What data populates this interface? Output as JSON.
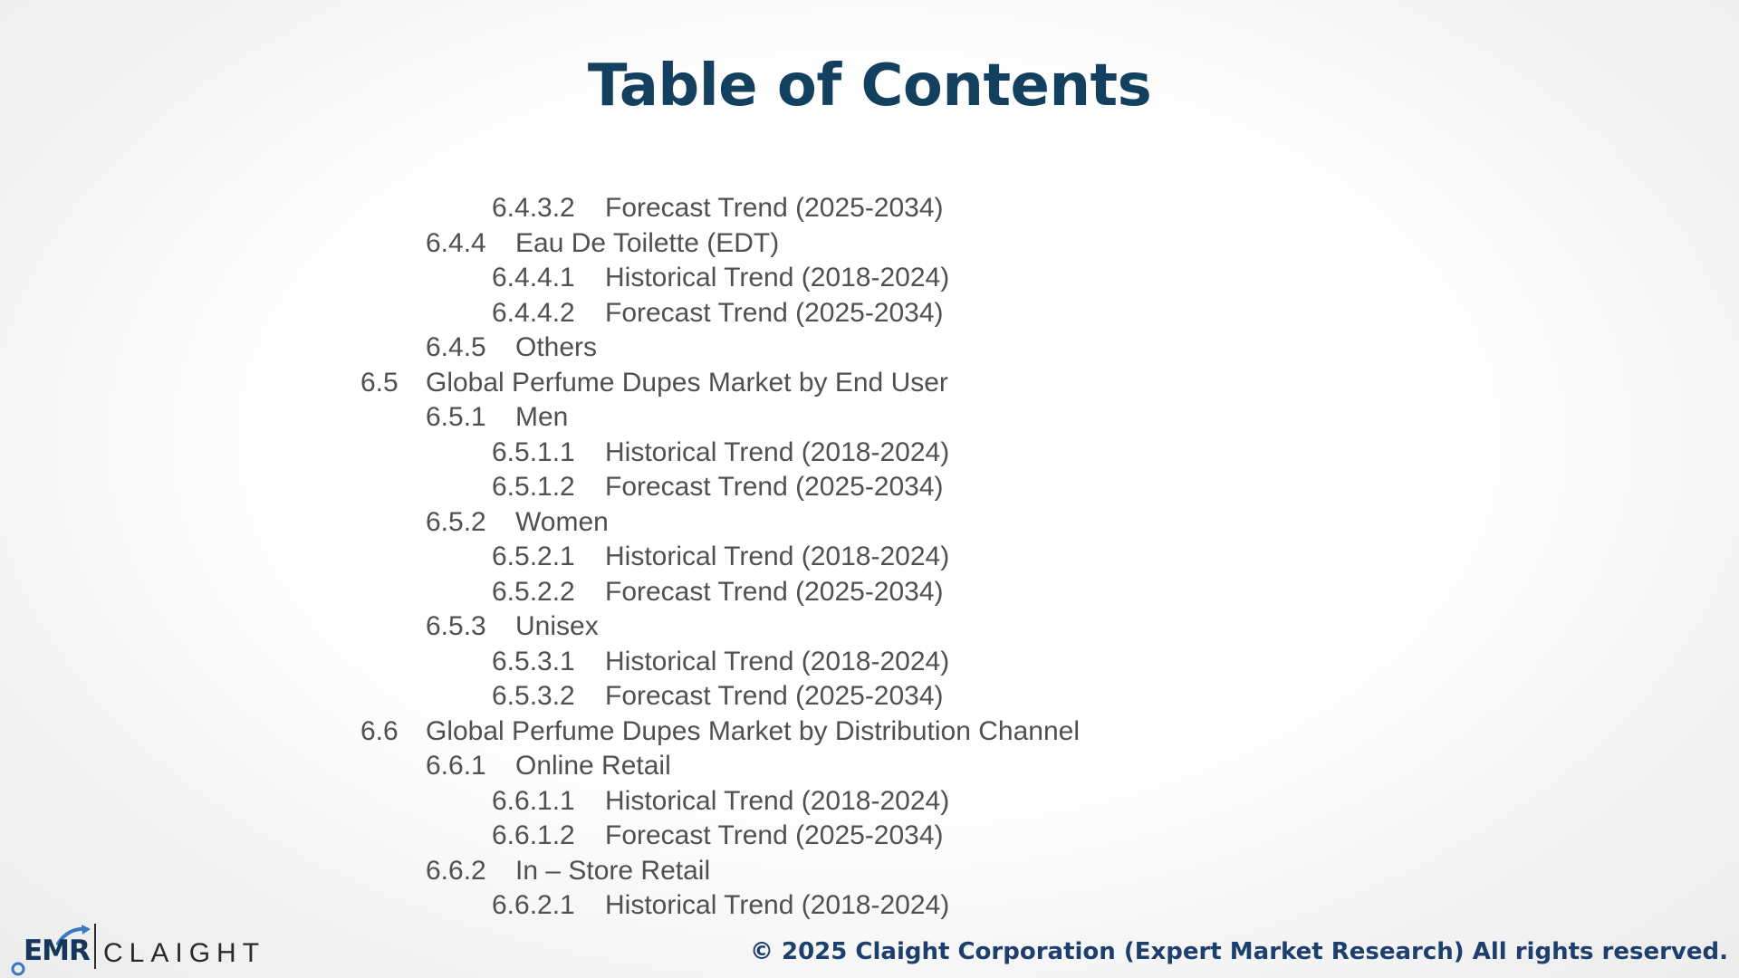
{
  "page": {
    "title": "Table of Contents",
    "toc": [
      {
        "level": 3,
        "number": "6.4.3.2",
        "text": "Forecast Trend (2025-2034)"
      },
      {
        "level": 2,
        "number": "6.4.4",
        "text": "Eau De Toilette (EDT)"
      },
      {
        "level": 3,
        "number": "6.4.4.1",
        "text": "Historical Trend (2018-2024)"
      },
      {
        "level": 3,
        "number": "6.4.4.2",
        "text": "Forecast Trend (2025-2034)"
      },
      {
        "level": 2,
        "number": "6.4.5",
        "text": "Others"
      },
      {
        "level": 1,
        "number": "6.5",
        "text": "Global Perfume Dupes Market by End User"
      },
      {
        "level": 2,
        "number": "6.5.1",
        "text": "Men"
      },
      {
        "level": 3,
        "number": "6.5.1.1",
        "text": "Historical Trend (2018-2024)"
      },
      {
        "level": 3,
        "number": "6.5.1.2",
        "text": "Forecast Trend (2025-2034)"
      },
      {
        "level": 2,
        "number": "6.5.2",
        "text": "Women"
      },
      {
        "level": 3,
        "number": "6.5.2.1",
        "text": "Historical Trend (2018-2024)"
      },
      {
        "level": 3,
        "number": "6.5.2.2",
        "text": "Forecast Trend (2025-2034)"
      },
      {
        "level": 2,
        "number": "6.5.3",
        "text": "Unisex"
      },
      {
        "level": 3,
        "number": "6.5.3.1",
        "text": "Historical Trend (2018-2024)"
      },
      {
        "level": 3,
        "number": "6.5.3.2",
        "text": "Forecast Trend (2025-2034)"
      },
      {
        "level": 1,
        "number": "6.6",
        "text": "Global Perfume Dupes Market by Distribution Channel"
      },
      {
        "level": 2,
        "number": "6.6.1",
        "text": "Online Retail"
      },
      {
        "level": 3,
        "number": "6.6.1.1",
        "text": "Historical Trend (2018-2024)"
      },
      {
        "level": 3,
        "number": "6.6.1.2",
        "text": "Forecast Trend (2025-2034)"
      },
      {
        "level": 2,
        "number": "6.6.2",
        "text": "In – Store Retail"
      },
      {
        "level": 3,
        "number": "6.6.2.1",
        "text": "Historical Trend (2018-2024)"
      }
    ]
  },
  "branding": {
    "logo_left": "EMR",
    "logo_right": "CLAIGHT",
    "copyright": "© 2025 Claight Corporation (Expert Market Research) All rights reserved."
  },
  "colors": {
    "title": "#14405f",
    "body_text": "#505050",
    "footer_text": "#1c3f6e",
    "logo_accent": "#3a78c2"
  }
}
